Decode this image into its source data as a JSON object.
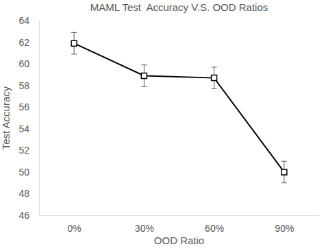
{
  "chart_data": {
    "type": "line",
    "title": "MAML Test  Accuracy V.S. OOD Ratios",
    "x_label": "OOD Ratio",
    "y_label": "Test Accuracy",
    "categories": [
      "0%",
      "30%",
      "60%",
      "90%"
    ],
    "values": [
      61.9,
      58.9,
      58.7,
      50.0
    ],
    "errors": [
      1.0,
      1.0,
      1.0,
      1.0
    ],
    "color": "#000000",
    "marker": "square",
    "ylim": [
      46,
      64
    ],
    "yticks": [
      46,
      48,
      50,
      52,
      54,
      56,
      58,
      60,
      62,
      64
    ],
    "grid": false
  }
}
